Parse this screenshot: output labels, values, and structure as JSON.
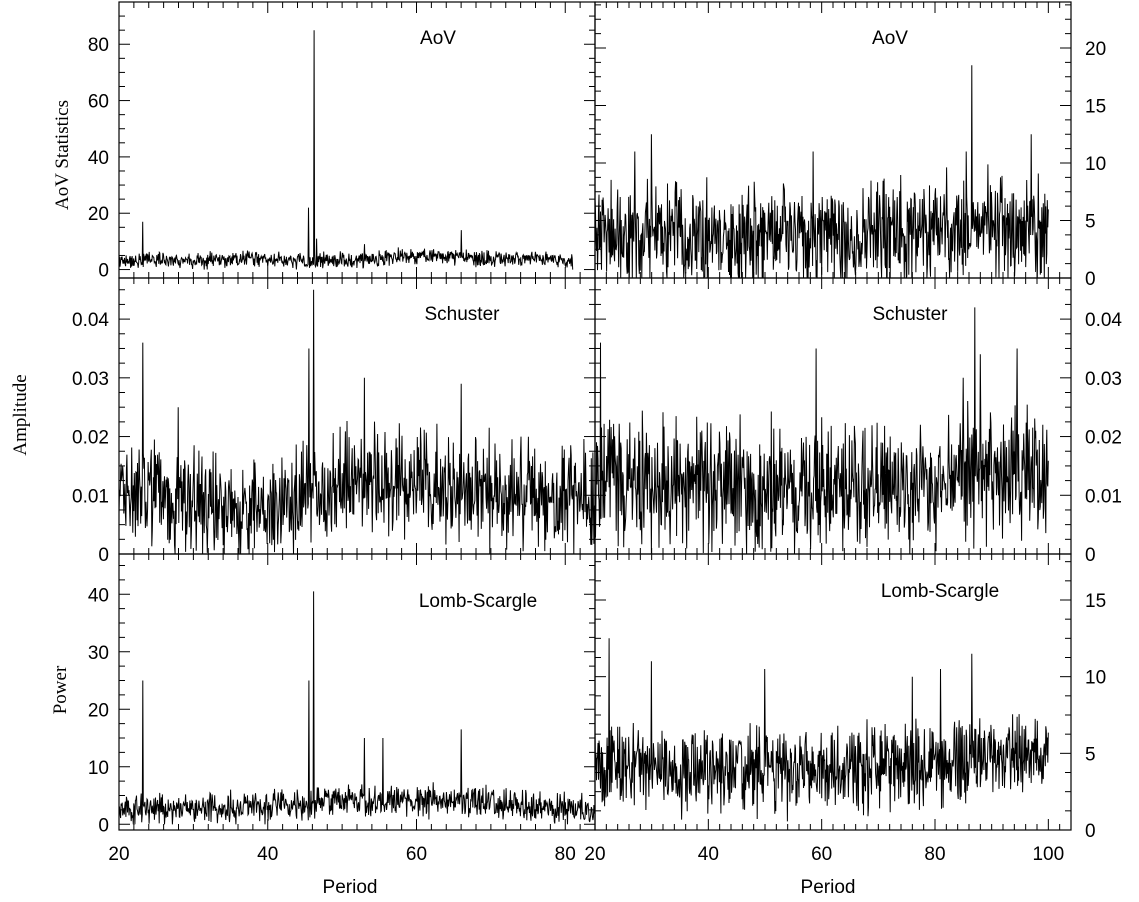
{
  "figure": {
    "x_axis_label": "Period",
    "row_labels": [
      "AoV Statistics",
      "Amplitude",
      "Power"
    ]
  },
  "colors": {
    "line": "#000000",
    "frame": "#000000",
    "background": "#ffffff"
  },
  "chart_data": [
    {
      "type": "line",
      "panel": "top-left",
      "title": "AoV",
      "xlabel": "",
      "ylabel": "AoV Statistics",
      "xlim": [
        20,
        84
      ],
      "ylim": [
        -3,
        95
      ],
      "xticks": [
        20,
        40,
        60,
        80
      ],
      "yticks": [
        0,
        20,
        40,
        60,
        80
      ],
      "series": [
        {
          "x_range": [
            20,
            81
          ],
          "baseline": [
            3,
            3.5,
            3,
            4,
            3,
            3,
            3.5,
            5,
            4.5,
            4,
            4,
            3
          ],
          "noise": 2.5,
          "peaks": [
            [
              23.2,
              17
            ],
            [
              45.5,
              22
            ],
            [
              46.2,
              85
            ],
            [
              46.6,
              11
            ],
            [
              66,
              14
            ],
            [
              53,
              9
            ]
          ]
        }
      ]
    },
    {
      "type": "line",
      "panel": "top-right",
      "title": "AoV",
      "xlabel": "",
      "ylabel": "",
      "xlim": [
        20,
        104
      ],
      "ylim": [
        0,
        24
      ],
      "xticks": [
        20,
        40,
        60,
        80,
        100
      ],
      "yticks": [
        5,
        10,
        15,
        20
      ],
      "series": [
        {
          "x_range": [
            20,
            100
          ],
          "baseline": [
            3.5,
            3.5,
            3.5,
            3.5,
            3.5,
            3.5,
            3.5,
            3.5,
            4,
            4.5,
            4.5,
            4
          ],
          "noise": 4,
          "peaks": [
            [
              30,
              12.5
            ],
            [
              86.5,
              18.5
            ],
            [
              97,
              12.5
            ],
            [
              58.5,
              11
            ],
            [
              85.5,
              11
            ],
            [
              27,
              11
            ]
          ]
        }
      ]
    },
    {
      "type": "line",
      "panel": "middle-left",
      "title": "Schuster",
      "xlabel": "",
      "ylabel": "Amplitude",
      "xlim": [
        20,
        84
      ],
      "ylim": [
        0,
        0.047
      ],
      "xticks": [
        20,
        40,
        60,
        80
      ],
      "yticks": [
        0.01,
        0.02,
        0.03,
        0.04
      ],
      "series": [
        {
          "x_range": [
            20,
            84
          ],
          "baseline": [
            0.011,
            0.01,
            0.009,
            0.008,
            0.009,
            0.012,
            0.012,
            0.012,
            0.011,
            0.01,
            0.01,
            0.008
          ],
          "noise": 0.008,
          "peaks": [
            [
              23.2,
              0.036
            ],
            [
              46.2,
              0.045
            ],
            [
              45.5,
              0.035
            ],
            [
              53,
              0.03
            ],
            [
              66,
              0.029
            ],
            [
              28,
              0.025
            ]
          ]
        }
      ]
    },
    {
      "type": "line",
      "panel": "middle-right",
      "title": "Schuster",
      "xlabel": "",
      "ylabel": "",
      "xlim": [
        20,
        104
      ],
      "ylim": [
        0,
        0.047
      ],
      "xticks": [
        20,
        40,
        60,
        80,
        100
      ],
      "yticks": [
        0.01,
        0.02,
        0.03,
        0.04
      ],
      "series": [
        {
          "x_range": [
            20,
            100
          ],
          "baseline": [
            0.012,
            0.012,
            0.012,
            0.012,
            0.011,
            0.011,
            0.012,
            0.012,
            0.012,
            0.013,
            0.015,
            0.012
          ],
          "noise": 0.01,
          "peaks": [
            [
              21,
              0.036
            ],
            [
              87,
              0.042
            ],
            [
              94.5,
              0.035
            ],
            [
              59,
              0.035
            ],
            [
              88,
              0.034
            ],
            [
              85,
              0.03
            ]
          ]
        }
      ]
    },
    {
      "type": "line",
      "panel": "bottom-left",
      "title": "Lomb-Scargle",
      "xlabel": "Period",
      "ylabel": "Power",
      "xlim": [
        20,
        84
      ],
      "ylim": [
        -1,
        47
      ],
      "xticks": [
        20,
        40,
        60,
        80
      ],
      "yticks": [
        0,
        10,
        20,
        30,
        40
      ],
      "series": [
        {
          "x_range": [
            20,
            84
          ],
          "baseline": [
            2.5,
            2.5,
            3,
            3,
            3,
            4,
            4,
            4,
            4,
            3.5,
            3,
            2.5
          ],
          "noise": 2.5,
          "peaks": [
            [
              23.2,
              25
            ],
            [
              45.5,
              25
            ],
            [
              46.2,
              40.5
            ],
            [
              66,
              16.5
            ],
            [
              53,
              15
            ],
            [
              55.5,
              15
            ]
          ]
        }
      ]
    },
    {
      "type": "line",
      "panel": "bottom-right",
      "title": "Lomb-Scargle",
      "xlabel": "Period",
      "ylabel": "",
      "xlim": [
        20,
        104
      ],
      "ylim": [
        0,
        18
      ],
      "xticks": [
        20,
        40,
        60,
        80,
        100
      ],
      "yticks": [
        0,
        5,
        10,
        15
      ],
      "series": [
        {
          "x_range": [
            20,
            100
          ],
          "baseline": [
            4,
            4,
            4,
            4,
            4,
            4,
            4,
            4,
            4.5,
            4.5,
            5,
            4.5
          ],
          "noise": 2.5,
          "peaks": [
            [
              22.5,
              12.5
            ],
            [
              86.5,
              11.5
            ],
            [
              30,
              11
            ],
            [
              50,
              10.5
            ],
            [
              81,
              10.5
            ],
            [
              76,
              10
            ]
          ]
        }
      ]
    }
  ]
}
